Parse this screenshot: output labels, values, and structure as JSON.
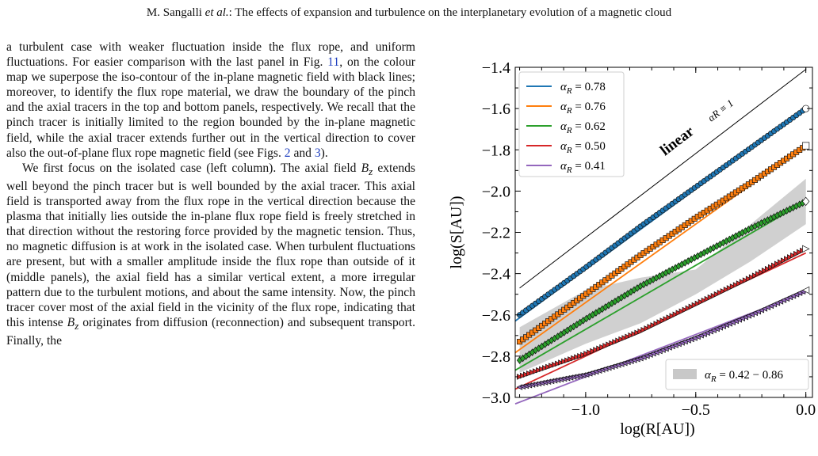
{
  "header": {
    "authors_pre": "M. Sangalli ",
    "authors_etal": "et al.",
    "authors_post": ": The effects of expansion and turbulence on the interplanetary evolution of a magnetic cloud"
  },
  "paragraph1": {
    "t1": "a turbulent case with weaker fluctuation inside the flux rope, and uniform fluctuations. For easier comparison with the last panel in Fig. ",
    "fig11": "11",
    "t2": ", on the colour map we superpose the iso-contour of the in-plane magnetic field with black lines; moreover, to identify the flux rope material, we draw the boundary of the pinch and the axial tracers in the top and bottom panels, respectively. We recall that the pinch tracer is initially limited to the region bounded by the in-plane magnetic field, while the axial tracer extends further out in the vertical direction to cover also the out-of-plane flux rope magnetic field (see Figs. ",
    "fig2": "2",
    "t3": " and ",
    "fig3": "3",
    "t4": ")."
  },
  "paragraph2": {
    "t1": "We first focus on the isolated case (left column). The axial field ",
    "bz1": "B",
    "bz1_sub": "z",
    "t2": " extends well beyond the pinch tracer but is well bounded by the axial tracer. This axial field is transported away from the flux rope in the vertical direction because the plasma that initially lies outside the in-plane flux rope field is freely stretched in that direction without the restoring force provided by the magnetic tension. Thus, no magnetic diffusion is at work in the isolated case. When turbulent fluctuations are present, but with a smaller amplitude inside the flux rope than outside of it (middle panels), the axial field has a similar vertical extent, a more irregular pattern due to the turbulent motions, and about the same intensity. Now, the pinch tracer cover most of the axial field in the vicinity of the flux rope, indicating that this intense ",
    "bz2": "B",
    "bz2_sub": "z",
    "t3": " originates from diffusion (reconnection) and subsequent transport. Finally, the"
  },
  "chart_data": {
    "type": "line",
    "xlabel": "log(R[AU])",
    "ylabel": "log(S[AU])",
    "xlim": [
      -1.32,
      0.03
    ],
    "ylim": [
      -3.0,
      -1.4
    ],
    "xticks": [
      -1.0,
      -0.5,
      0.0
    ],
    "xtick_labels": [
      "−1.0",
      "−0.5",
      "0.0"
    ],
    "yticks": [
      -3.0,
      -2.8,
      -2.6,
      -2.4,
      -2.2,
      -2.0,
      -1.8,
      -1.6,
      -1.4
    ],
    "ytick_labels": [
      "−3.0",
      "−2.8",
      "−2.6",
      "−2.4",
      "−2.2",
      "−2.0",
      "−1.8",
      "−1.6",
      "−1.4"
    ],
    "legend_position": "top-left",
    "series": [
      {
        "name": "αR = 0.78",
        "alpha": "0.78",
        "color": "#1f77b4",
        "marker": "circle",
        "x": [
          -1.3,
          -1.0,
          -0.75,
          -0.5,
          -0.25,
          0.0
        ],
        "y": [
          -2.6,
          -2.37,
          -2.17,
          -1.98,
          -1.79,
          -1.6
        ]
      },
      {
        "name": "αR = 0.76",
        "alpha": "0.76",
        "color": "#ff7f0e",
        "marker": "square",
        "x": [
          -1.3,
          -1.0,
          -0.75,
          -0.5,
          -0.25,
          0.0
        ],
        "y": [
          -2.73,
          -2.5,
          -2.31,
          -2.13,
          -1.96,
          -1.78
        ]
      },
      {
        "name": "αR = 0.62",
        "alpha": "0.62",
        "color": "#2ca02c",
        "marker": "diamond",
        "x": [
          -1.3,
          -1.0,
          -0.75,
          -0.5,
          -0.25,
          0.0
        ],
        "y": [
          -2.82,
          -2.62,
          -2.46,
          -2.32,
          -2.18,
          -2.05
        ]
      },
      {
        "name": "αR = 0.50",
        "alpha": "0.50",
        "color": "#d62728",
        "marker": "triangle-right",
        "x": [
          -1.3,
          -1.0,
          -0.75,
          -0.5,
          -0.25,
          0.0
        ],
        "y": [
          -2.9,
          -2.79,
          -2.68,
          -2.55,
          -2.42,
          -2.28
        ]
      },
      {
        "name": "αR = 0.41",
        "alpha": "0.41",
        "color": "#9467bd",
        "marker": "triangle-left",
        "x": [
          -1.3,
          -1.0,
          -0.75,
          -0.5,
          -0.25,
          0.0
        ],
        "y": [
          -2.95,
          -2.89,
          -2.81,
          -2.71,
          -2.6,
          -2.48
        ]
      }
    ],
    "fit_lines": [
      {
        "slope": 0.78,
        "intercept": -1.6,
        "color": "#1f77b4"
      },
      {
        "slope": 0.76,
        "intercept": -1.78,
        "color": "#ff7f0e"
      },
      {
        "slope": 0.62,
        "intercept": -2.05,
        "color": "#2ca02c"
      },
      {
        "slope": 0.5,
        "intercept": -2.3,
        "color": "#d62728"
      },
      {
        "slope": 0.41,
        "intercept": -2.49,
        "color": "#9467bd"
      }
    ],
    "reference_line": {
      "label": "linear",
      "label_alpha": "αR ≡ 1",
      "x": [
        -1.3,
        0.0
      ],
      "y": [
        -2.47,
        -1.41
      ],
      "color": "#000000"
    },
    "band": {
      "label_alpha": "αR",
      "label_value": "= 0.42 − 0.86",
      "color": "#c8c8c8",
      "x": [
        -1.3,
        -1.0,
        -0.75,
        -0.5,
        -0.25,
        0.0
      ],
      "lower": [
        -2.88,
        -2.74,
        -2.64,
        -2.5,
        -2.34,
        -2.16
      ],
      "upper": [
        -2.66,
        -2.48,
        -2.42,
        -2.38,
        -2.16,
        -1.94
      ]
    }
  }
}
